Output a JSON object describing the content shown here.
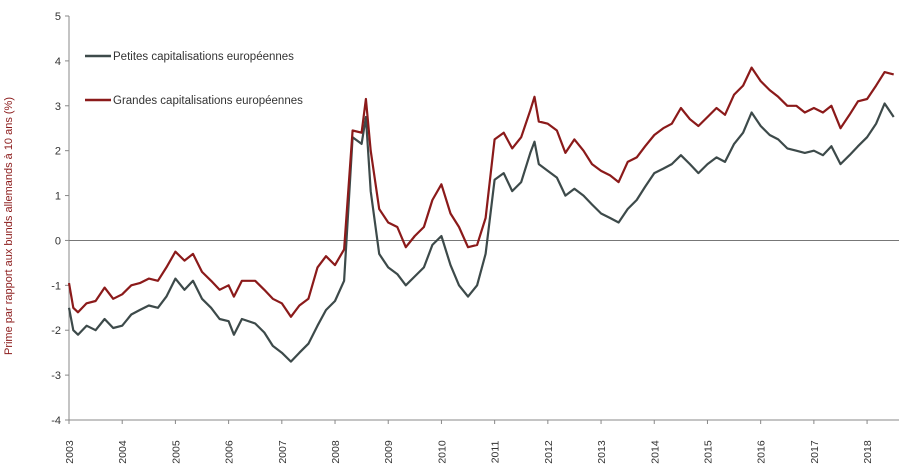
{
  "chart_data": {
    "type": "line",
    "title": "",
    "xlabel": "",
    "ylabel": "Prime par rapport aux bunds allemands à 10 ans (%)",
    "ylim": [
      -4,
      5
    ],
    "yticks": [
      5,
      4,
      3,
      2,
      1,
      0,
      -1,
      -2,
      -3,
      -4
    ],
    "xlim": [
      2003.0,
      2018.6
    ],
    "xticks": [
      "2003",
      "2004",
      "2005",
      "2006",
      "2007",
      "2008",
      "2009",
      "2010",
      "2011",
      "2012",
      "2013",
      "2014",
      "2015",
      "2016",
      "2017",
      "2018"
    ],
    "legend_position": "top-left",
    "series": [
      {
        "name": "Petites capitalisations européennes",
        "color": "#3d4a4a",
        "points": [
          [
            2003.0,
            -1.5
          ],
          [
            2003.08,
            -2.0
          ],
          [
            2003.17,
            -2.1
          ],
          [
            2003.33,
            -1.9
          ],
          [
            2003.5,
            -2.0
          ],
          [
            2003.67,
            -1.75
          ],
          [
            2003.83,
            -1.95
          ],
          [
            2004.0,
            -1.9
          ],
          [
            2004.17,
            -1.65
          ],
          [
            2004.33,
            -1.55
          ],
          [
            2004.5,
            -1.45
          ],
          [
            2004.67,
            -1.5
          ],
          [
            2004.83,
            -1.25
          ],
          [
            2005.0,
            -0.85
          ],
          [
            2005.17,
            -1.1
          ],
          [
            2005.33,
            -0.9
          ],
          [
            2005.5,
            -1.3
          ],
          [
            2005.67,
            -1.5
          ],
          [
            2005.83,
            -1.75
          ],
          [
            2006.0,
            -1.8
          ],
          [
            2006.1,
            -2.1
          ],
          [
            2006.25,
            -1.75
          ],
          [
            2006.5,
            -1.85
          ],
          [
            2006.67,
            -2.05
          ],
          [
            2006.83,
            -2.35
          ],
          [
            2007.0,
            -2.5
          ],
          [
            2007.17,
            -2.7
          ],
          [
            2007.33,
            -2.5
          ],
          [
            2007.5,
            -2.3
          ],
          [
            2007.67,
            -1.9
          ],
          [
            2007.83,
            -1.55
          ],
          [
            2008.0,
            -1.35
          ],
          [
            2008.17,
            -0.9
          ],
          [
            2008.33,
            2.3
          ],
          [
            2008.5,
            2.15
          ],
          [
            2008.58,
            2.75
          ],
          [
            2008.67,
            1.1
          ],
          [
            2008.83,
            -0.3
          ],
          [
            2009.0,
            -0.6
          ],
          [
            2009.17,
            -0.75
          ],
          [
            2009.33,
            -1.0
          ],
          [
            2009.5,
            -0.8
          ],
          [
            2009.67,
            -0.6
          ],
          [
            2009.83,
            -0.1
          ],
          [
            2010.0,
            0.1
          ],
          [
            2010.17,
            -0.55
          ],
          [
            2010.33,
            -1.0
          ],
          [
            2010.5,
            -1.25
          ],
          [
            2010.67,
            -1.0
          ],
          [
            2010.83,
            -0.3
          ],
          [
            2011.0,
            1.35
          ],
          [
            2011.17,
            1.5
          ],
          [
            2011.33,
            1.1
          ],
          [
            2011.5,
            1.3
          ],
          [
            2011.67,
            1.95
          ],
          [
            2011.75,
            2.2
          ],
          [
            2011.83,
            1.7
          ],
          [
            2012.0,
            1.55
          ],
          [
            2012.17,
            1.4
          ],
          [
            2012.33,
            1.0
          ],
          [
            2012.5,
            1.15
          ],
          [
            2012.67,
            1.0
          ],
          [
            2012.83,
            0.8
          ],
          [
            2013.0,
            0.6
          ],
          [
            2013.17,
            0.5
          ],
          [
            2013.33,
            0.4
          ],
          [
            2013.5,
            0.7
          ],
          [
            2013.67,
            0.9
          ],
          [
            2013.83,
            1.2
          ],
          [
            2014.0,
            1.5
          ],
          [
            2014.17,
            1.6
          ],
          [
            2014.33,
            1.7
          ],
          [
            2014.5,
            1.9
          ],
          [
            2014.67,
            1.7
          ],
          [
            2014.83,
            1.5
          ],
          [
            2015.0,
            1.7
          ],
          [
            2015.17,
            1.85
          ],
          [
            2015.33,
            1.75
          ],
          [
            2015.5,
            2.15
          ],
          [
            2015.67,
            2.4
          ],
          [
            2015.83,
            2.85
          ],
          [
            2016.0,
            2.55
          ],
          [
            2016.17,
            2.35
          ],
          [
            2016.33,
            2.25
          ],
          [
            2016.5,
            2.05
          ],
          [
            2016.67,
            2.0
          ],
          [
            2016.83,
            1.95
          ],
          [
            2017.0,
            2.0
          ],
          [
            2017.17,
            1.9
          ],
          [
            2017.33,
            2.1
          ],
          [
            2017.5,
            1.7
          ],
          [
            2017.67,
            1.9
          ],
          [
            2017.83,
            2.1
          ],
          [
            2018.0,
            2.3
          ],
          [
            2018.17,
            2.6
          ],
          [
            2018.33,
            3.05
          ],
          [
            2018.5,
            2.75
          ]
        ]
      },
      {
        "name": "Grandes capitalisations européennes",
        "color": "#8b1a1a",
        "points": [
          [
            2003.0,
            -0.95
          ],
          [
            2003.08,
            -1.5
          ],
          [
            2003.17,
            -1.6
          ],
          [
            2003.33,
            -1.4
          ],
          [
            2003.5,
            -1.35
          ],
          [
            2003.67,
            -1.05
          ],
          [
            2003.83,
            -1.3
          ],
          [
            2004.0,
            -1.2
          ],
          [
            2004.17,
            -1.0
          ],
          [
            2004.33,
            -0.95
          ],
          [
            2004.5,
            -0.85
          ],
          [
            2004.67,
            -0.9
          ],
          [
            2004.83,
            -0.6
          ],
          [
            2005.0,
            -0.25
          ],
          [
            2005.17,
            -0.45
          ],
          [
            2005.33,
            -0.3
          ],
          [
            2005.5,
            -0.7
          ],
          [
            2005.67,
            -0.9
          ],
          [
            2005.83,
            -1.1
          ],
          [
            2006.0,
            -1.0
          ],
          [
            2006.1,
            -1.25
          ],
          [
            2006.25,
            -0.9
          ],
          [
            2006.5,
            -0.9
          ],
          [
            2006.67,
            -1.1
          ],
          [
            2006.83,
            -1.3
          ],
          [
            2007.0,
            -1.4
          ],
          [
            2007.17,
            -1.7
          ],
          [
            2007.33,
            -1.45
          ],
          [
            2007.5,
            -1.3
          ],
          [
            2007.67,
            -0.6
          ],
          [
            2007.83,
            -0.35
          ],
          [
            2008.0,
            -0.55
          ],
          [
            2008.17,
            -0.2
          ],
          [
            2008.33,
            2.45
          ],
          [
            2008.5,
            2.4
          ],
          [
            2008.58,
            3.15
          ],
          [
            2008.67,
            2.0
          ],
          [
            2008.83,
            0.7
          ],
          [
            2009.0,
            0.4
          ],
          [
            2009.17,
            0.3
          ],
          [
            2009.33,
            -0.15
          ],
          [
            2009.5,
            0.1
          ],
          [
            2009.67,
            0.3
          ],
          [
            2009.83,
            0.9
          ],
          [
            2010.0,
            1.25
          ],
          [
            2010.17,
            0.6
          ],
          [
            2010.33,
            0.3
          ],
          [
            2010.5,
            -0.15
          ],
          [
            2010.67,
            -0.1
          ],
          [
            2010.83,
            0.5
          ],
          [
            2011.0,
            2.25
          ],
          [
            2011.17,
            2.4
          ],
          [
            2011.33,
            2.05
          ],
          [
            2011.5,
            2.3
          ],
          [
            2011.67,
            2.9
          ],
          [
            2011.75,
            3.2
          ],
          [
            2011.83,
            2.65
          ],
          [
            2012.0,
            2.6
          ],
          [
            2012.17,
            2.45
          ],
          [
            2012.33,
            1.95
          ],
          [
            2012.5,
            2.25
          ],
          [
            2012.67,
            2.0
          ],
          [
            2012.83,
            1.7
          ],
          [
            2013.0,
            1.55
          ],
          [
            2013.17,
            1.45
          ],
          [
            2013.33,
            1.3
          ],
          [
            2013.5,
            1.75
          ],
          [
            2013.67,
            1.85
          ],
          [
            2013.83,
            2.1
          ],
          [
            2014.0,
            2.35
          ],
          [
            2014.17,
            2.5
          ],
          [
            2014.33,
            2.6
          ],
          [
            2014.5,
            2.95
          ],
          [
            2014.67,
            2.7
          ],
          [
            2014.83,
            2.55
          ],
          [
            2015.0,
            2.75
          ],
          [
            2015.17,
            2.95
          ],
          [
            2015.33,
            2.8
          ],
          [
            2015.5,
            3.25
          ],
          [
            2015.67,
            3.45
          ],
          [
            2015.83,
            3.85
          ],
          [
            2016.0,
            3.55
          ],
          [
            2016.17,
            3.35
          ],
          [
            2016.33,
            3.2
          ],
          [
            2016.5,
            3.0
          ],
          [
            2016.67,
            3.0
          ],
          [
            2016.83,
            2.85
          ],
          [
            2017.0,
            2.95
          ],
          [
            2017.17,
            2.85
          ],
          [
            2017.33,
            3.0
          ],
          [
            2017.5,
            2.5
          ],
          [
            2017.67,
            2.8
          ],
          [
            2017.83,
            3.1
          ],
          [
            2018.0,
            3.15
          ],
          [
            2018.17,
            3.45
          ],
          [
            2018.33,
            3.75
          ],
          [
            2018.5,
            3.7
          ]
        ]
      }
    ]
  }
}
